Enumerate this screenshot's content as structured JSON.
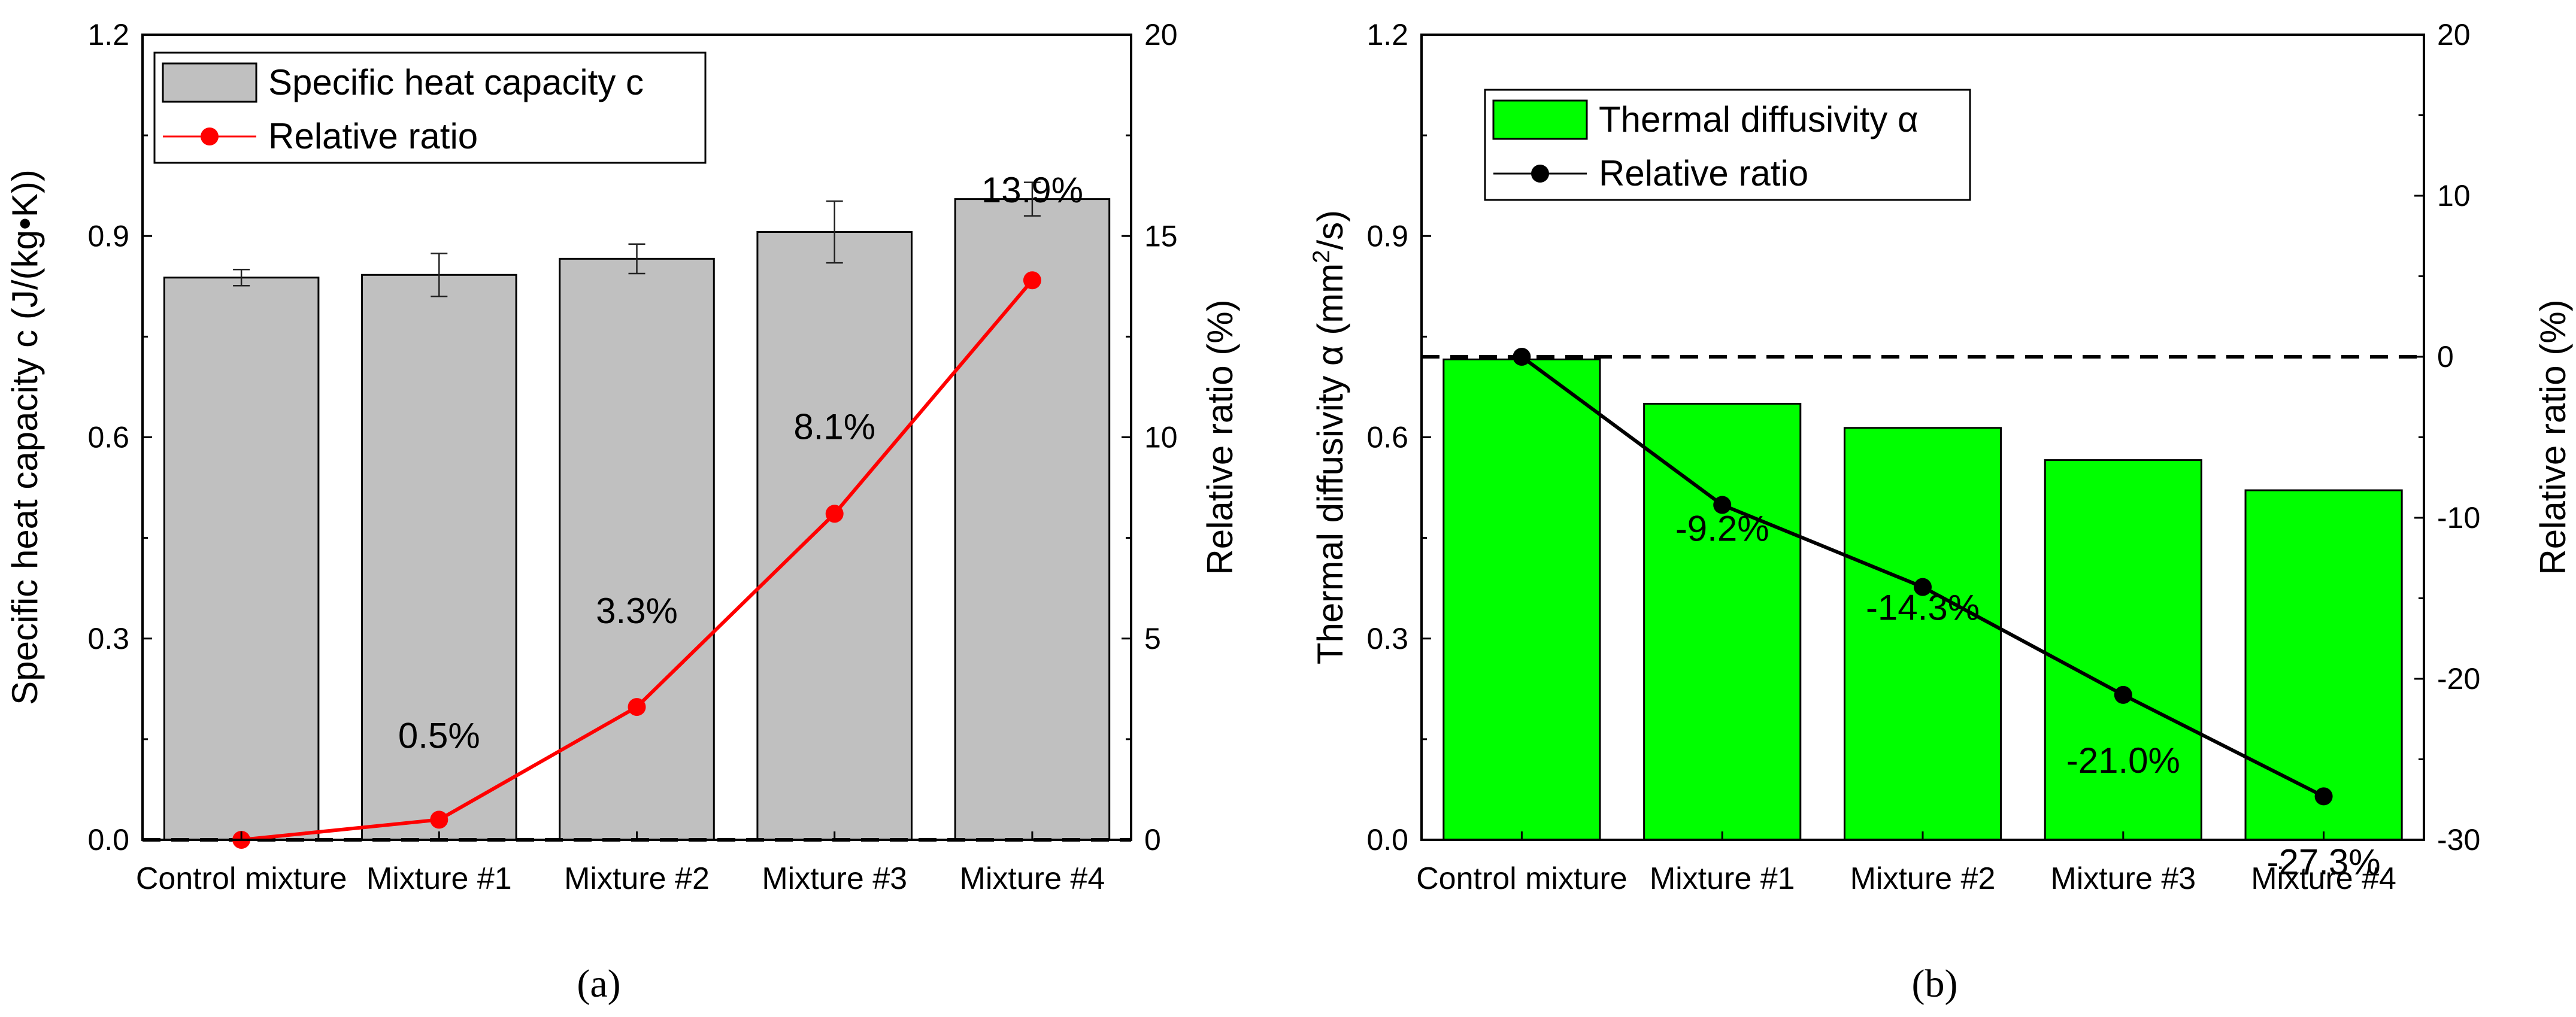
{
  "chart_data": [
    {
      "panel": "(a)",
      "type": "bar",
      "categories": [
        "Control mixture",
        "Mixture #1",
        "Mixture #2",
        "Mixture #3",
        "Mixture #4"
      ],
      "series": [
        {
          "name": "Specific heat capacity c",
          "axis": "left",
          "values": [
            0.838,
            0.842,
            0.866,
            0.906,
            0.955
          ],
          "errors": [
            0.012,
            0.032,
            0.022,
            0.046,
            0.025
          ],
          "color": "#c0c0c0"
        },
        {
          "name": "Relative ratio",
          "axis": "right",
          "kind": "line",
          "values": [
            0,
            0.5,
            3.3,
            8.1,
            13.9
          ],
          "color": "#ff0000"
        }
      ],
      "data_labels": [
        "0.5%",
        "3.3%",
        "8.1%",
        "13.9%"
      ],
      "reference_line_right": 0,
      "ylabel": "Specific heat capacity c (J/(kg•K))",
      "ylabel2": "Relative ratio (%)",
      "ylim": [
        0,
        1.2
      ],
      "ylim2": [
        0,
        20
      ],
      "yticks": [
        "0.0",
        "0.3",
        "0.6",
        "0.9",
        "1.2"
      ],
      "yticks2": [
        "0",
        "5",
        "10",
        "15",
        "20"
      ],
      "legend_position": "top-left"
    },
    {
      "panel": "(b)",
      "type": "bar",
      "categories": [
        "Control mixture",
        "Mixture #1",
        "Mixture #2",
        "Mixture #3",
        "Mixture #4"
      ],
      "series": [
        {
          "name": "Thermal diffusivity α",
          "axis": "left",
          "values": [
            0.716,
            0.65,
            0.614,
            0.566,
            0.521
          ],
          "color": "#00ff00"
        },
        {
          "name": "Relative ratio",
          "axis": "right",
          "kind": "line",
          "values": [
            0,
            -9.2,
            -14.3,
            -21.0,
            -27.3
          ],
          "color": "#000000"
        }
      ],
      "data_labels": [
        "-9.2%",
        "-14.3%",
        "-21.0%",
        "-27.3%"
      ],
      "reference_line_right": 0,
      "ylabel_main": "Thermal diffusivity α (mm",
      "ylabel_sup": "2",
      "ylabel_end": "/s)",
      "ylabel2": "Relative ratio (%)",
      "ylim": [
        0,
        1.2
      ],
      "ylim2": [
        -30,
        20
      ],
      "yticks": [
        "0.0",
        "0.3",
        "0.6",
        "0.9",
        "1.2"
      ],
      "yticks2": [
        "-30",
        "-20",
        "-10",
        "0",
        "10",
        "20"
      ],
      "legend_position": "top-left"
    }
  ],
  "panel_labels": [
    "(a)",
    "(b)"
  ]
}
